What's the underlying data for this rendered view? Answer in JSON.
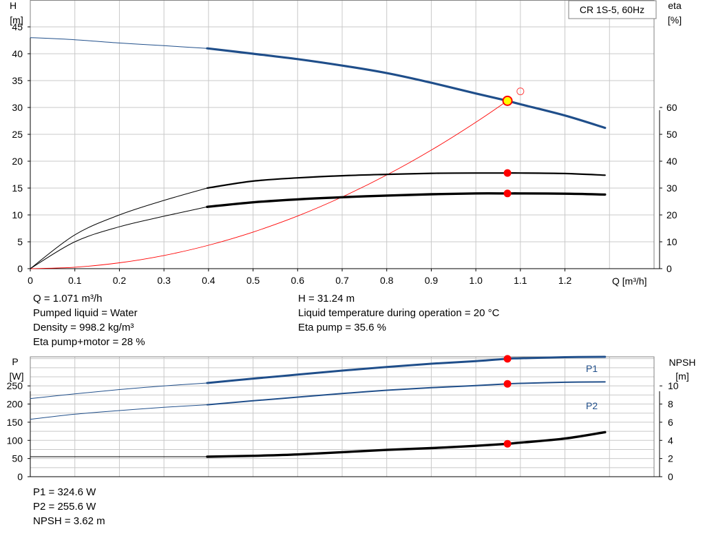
{
  "title": "CR 1S-5, 60Hz",
  "colors": {
    "blue": "#1f4e8a",
    "red": "#ff0000",
    "grid": "#c8c8c8",
    "marker_fill": "#ffff00"
  },
  "info_top": {
    "left": [
      "Q = 1.071 m³/h",
      "Pumped liquid = Water",
      "Density = 998.2 kg/m³",
      "Eta pump+motor = 28 %"
    ],
    "right": [
      "H = 31.24 m",
      "Liquid temperature during operation = 20 °C",
      "Eta pump = 35.6 %"
    ]
  },
  "info_bottom": [
    "P1 = 324.6 W",
    "P2 = 255.6 W",
    "NPSH = 3.62 m"
  ],
  "chart_data": [
    {
      "type": "line",
      "x_label": "Q [m³/h]",
      "y_left_label": [
        "H",
        "[m]"
      ],
      "y_right_label": [
        "eta",
        "[%]"
      ],
      "x_ticks": [
        "0",
        "0.1",
        "0.2",
        "0.3",
        "0.4",
        "0.5",
        "0.6",
        "0.7",
        "0.8",
        "0.9",
        "1.0",
        "1.1",
        "1.2"
      ],
      "y_left_ticks": [
        "0",
        "5",
        "10",
        "15",
        "20",
        "25",
        "30",
        "35",
        "40",
        "45"
      ],
      "y_right_ticks": [
        "0",
        "10",
        "20",
        "30",
        "40",
        "50",
        "60"
      ],
      "xlim": [
        0,
        1.4
      ],
      "ylim_left": [
        0,
        50
      ],
      "ylim_right": [
        0,
        100
      ],
      "grid": true,
      "series": [
        {
          "axis": "left",
          "color": "#1f4e8a",
          "role": "head",
          "x": [
            0,
            0.1,
            0.2,
            0.3,
            0.397,
            0.5,
            0.6,
            0.7,
            0.8,
            0.9,
            1.0,
            1.071,
            1.1,
            1.2,
            1.29
          ],
          "y": [
            43,
            42.6,
            42.0,
            41.5,
            41.0,
            40.0,
            39.0,
            37.8,
            36.4,
            34.6,
            32.6,
            31.24,
            30.6,
            28.5,
            26.2
          ]
        },
        {
          "axis": "right",
          "color": "#000000",
          "role": "eta pump",
          "x": [
            0,
            0.1,
            0.2,
            0.3,
            0.397,
            0.5,
            0.6,
            0.7,
            0.8,
            0.9,
            1.0,
            1.071,
            1.1,
            1.2,
            1.29
          ],
          "y": [
            0,
            12.6,
            20.0,
            25.4,
            30.0,
            32.6,
            33.8,
            34.6,
            35.1,
            35.5,
            35.6,
            35.6,
            35.6,
            35.4,
            34.8
          ]
        },
        {
          "axis": "right",
          "color": "#000000",
          "role": "eta pump+motor",
          "x": [
            0,
            0.1,
            0.2,
            0.3,
            0.397,
            0.5,
            0.6,
            0.7,
            0.8,
            0.9,
            1.0,
            1.071,
            1.1,
            1.2,
            1.29
          ],
          "y": [
            0,
            10.0,
            15.6,
            19.5,
            23.0,
            24.7,
            25.8,
            26.6,
            27.2,
            27.7,
            28.0,
            28.0,
            28.0,
            27.9,
            27.6
          ]
        },
        {
          "axis": "left",
          "color": "#ff0000",
          "role": "system curve",
          "x": [
            0,
            0.1,
            0.2,
            0.3,
            0.4,
            0.5,
            0.6,
            0.7,
            0.8,
            0.9,
            1.0,
            1.071
          ],
          "y": [
            0,
            0.27,
            1.09,
            2.45,
            4.36,
            6.81,
            9.8,
            13.35,
            17.43,
            22.06,
            27.24,
            31.24
          ]
        }
      ],
      "duty_point": {
        "x": 1.071,
        "h": 31.24,
        "eta_pump": 35.6,
        "eta_pump_motor": 28
      },
      "open_marker": {
        "x": 1.1,
        "h": 33
      }
    },
    {
      "type": "line",
      "y_left_label": [
        "P",
        "[W]"
      ],
      "y_right_label": [
        "NPSH",
        "[m]"
      ],
      "y_left_ticks": [
        "0",
        "50",
        "100",
        "150",
        "200",
        "250"
      ],
      "y_right_ticks": [
        "0",
        "2",
        "4",
        "6",
        "8",
        "10"
      ],
      "xlim": [
        0,
        1.4
      ],
      "ylim_left": [
        0,
        330
      ],
      "ylim_right": [
        0,
        13.2
      ],
      "grid": true,
      "series": [
        {
          "name": "P1",
          "axis": "left",
          "color": "#1f4e8a",
          "x": [
            0,
            0.1,
            0.2,
            0.3,
            0.397,
            0.5,
            0.6,
            0.7,
            0.8,
            0.9,
            1.0,
            1.071,
            1.1,
            1.2,
            1.29
          ],
          "y": [
            215,
            228,
            240,
            250,
            258,
            270,
            281,
            292,
            302,
            311,
            318,
            324.6,
            326,
            329,
            330
          ]
        },
        {
          "name": "P2",
          "axis": "left",
          "color": "#1f4e8a",
          "x": [
            0,
            0.1,
            0.2,
            0.3,
            0.397,
            0.5,
            0.6,
            0.7,
            0.8,
            0.9,
            1.0,
            1.071,
            1.1,
            1.2,
            1.29
          ],
          "y": [
            158,
            172,
            182,
            191,
            198,
            209,
            219,
            229,
            238,
            245,
            251,
            255.6,
            257,
            260,
            261
          ]
        },
        {
          "name": "NPSH",
          "axis": "right",
          "color": "#000000",
          "x": [
            0,
            0.397,
            0.5,
            0.6,
            0.7,
            0.8,
            0.9,
            1.0,
            1.071,
            1.1,
            1.2,
            1.29
          ],
          "y": [
            2.2,
            2.2,
            2.3,
            2.45,
            2.7,
            2.95,
            3.15,
            3.4,
            3.62,
            3.75,
            4.2,
            4.9
          ]
        }
      ],
      "duty_point": {
        "x": 1.071,
        "p1": 324.6,
        "p2": 255.6,
        "npsh": 3.62
      }
    }
  ]
}
